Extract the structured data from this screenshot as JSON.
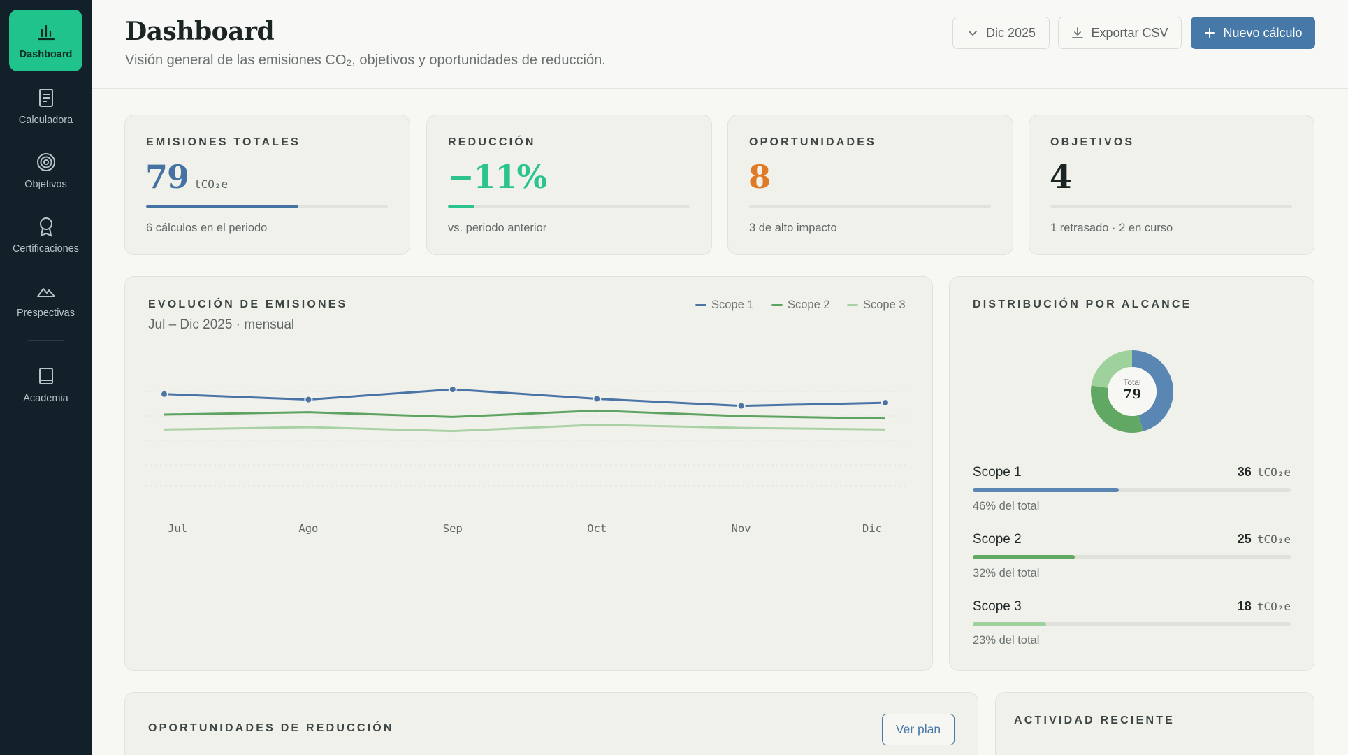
{
  "sidebar": {
    "items": [
      {
        "label": "Dashboard",
        "icon": "bar-chart-icon",
        "active": true
      },
      {
        "label": "Calculadora",
        "icon": "document-icon",
        "active": false
      },
      {
        "label": "Objetivos",
        "icon": "target-icon",
        "active": false
      },
      {
        "label": "Certificaciones",
        "icon": "award-icon",
        "active": false
      },
      {
        "label": "Prespectivas",
        "icon": "mountain-icon",
        "active": false
      },
      {
        "label": "Academia",
        "icon": "book-icon",
        "active": false
      }
    ]
  },
  "header": {
    "title": "Dashboard",
    "subtitle": "Visión general de las emisiones CO₂, objetivos y oportunidades de reducción.",
    "period_label": "Dic 2025",
    "export_label": "Exportar CSV",
    "new_label": "Nuevo cálculo"
  },
  "kpis": [
    {
      "label": "EMISIONES TOTALES",
      "value": "79",
      "unit": "tCO₂e",
      "progress": 0.63,
      "color": "#4372a3",
      "note": "6 cálculos en el periodo"
    },
    {
      "label": "REDUCCIÓN",
      "value": "−11%",
      "unit": "",
      "progress": 0.11,
      "color": "#2bc48e",
      "note": "vs. periodo anterior"
    },
    {
      "label": "OPORTUNIDADES",
      "value": "8",
      "unit": "",
      "progress": 0,
      "color": "#e07a26",
      "note": "3 de alto impacto"
    },
    {
      "label": "OBJETIVOS",
      "value": "4",
      "unit": "",
      "progress": 0,
      "color": "#1c2423",
      "note": "1 retrasado · 2 en curso"
    }
  ],
  "evolution": {
    "title": "EVOLUCIÓN DE EMISIONES",
    "subtitle": "Jul – Dic 2025 · mensual"
  },
  "chart_data": {
    "type": "line",
    "categories": [
      "Jul",
      "Ago",
      "Sep",
      "Oct",
      "Nov",
      "Dic"
    ],
    "series": [
      {
        "name": "Scope 1",
        "color": "#4a74a6",
        "values": [
          15.0,
          14.3,
          15.6,
          14.4,
          13.5,
          13.9
        ],
        "markers": true
      },
      {
        "name": "Scope 2",
        "color": "#5fa362",
        "values": [
          12.4,
          12.7,
          12.1,
          12.9,
          12.2,
          11.9
        ],
        "markers": false
      },
      {
        "name": "Scope 3",
        "color": "#a9d1a6",
        "values": [
          10.5,
          10.8,
          10.3,
          11.1,
          10.7,
          10.5
        ],
        "markers": false
      }
    ],
    "ylim": [
      6,
      18
    ],
    "grid": true,
    "legend": "top-right"
  },
  "distribution": {
    "title": "DISTRIBUCIÓN POR ALCANCE",
    "donut_total_label": "Total",
    "donut_total_value": "79",
    "scopes": [
      {
        "name": "Scope 1",
        "value": "36",
        "unit": "tCO₂e",
        "pct_label": "46% del total",
        "fraction": 0.46,
        "color": "#5a86b3"
      },
      {
        "name": "Scope 2",
        "value": "25",
        "unit": "tCO₂e",
        "pct_label": "32% del total",
        "fraction": 0.32,
        "color": "#62a865"
      },
      {
        "name": "Scope 3",
        "value": "18",
        "unit": "tCO₂e",
        "pct_label": "23% del total",
        "fraction": 0.23,
        "color": "#9fd19d"
      }
    ]
  },
  "opportunities": {
    "title": "OPORTUNIDADES DE REDUCCIÓN",
    "button_label": "Ver plan"
  },
  "activity": {
    "title": "ACTIVIDAD RECIENTE"
  }
}
